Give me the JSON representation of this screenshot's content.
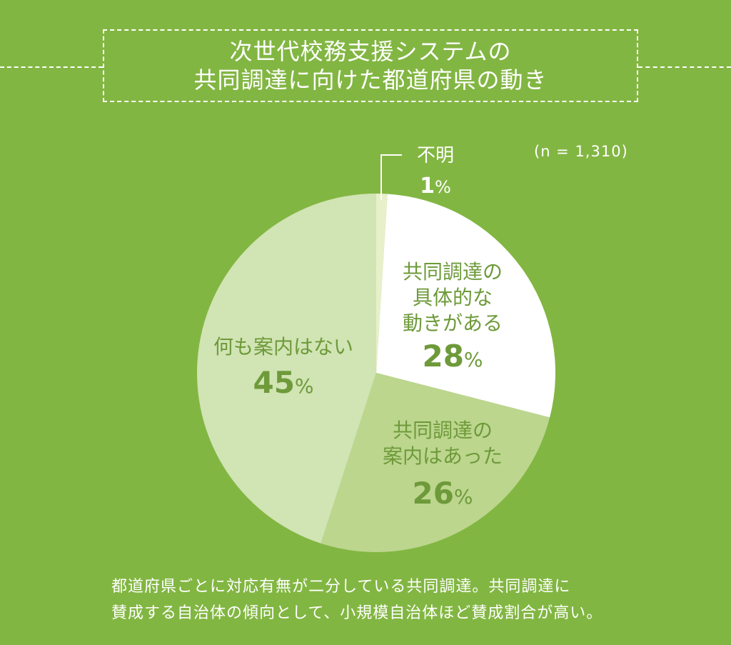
{
  "title": {
    "line1": "次世代校務支援システムの",
    "line2": "共同調達に向けた都道府県の動き"
  },
  "sample_note": "(n = 1,310)",
  "caption": {
    "line1": "都道府県ごとに対応有無が二分している共同調達。共同調達に",
    "line2": "賛成する自治体の傾向として、小規模自治体ほど賛成割合が高い。"
  },
  "colors": {
    "background": "#82b642",
    "accent_text": "#6e9a3a",
    "label_text": "#6e9a3a",
    "white": "#ffffff"
  },
  "chart_data": {
    "type": "pie",
    "title": "次世代校務支援システムの共同調達に向けた都道府県の動き",
    "start": "12 o'clock, clockwise",
    "slices": [
      {
        "label_lines": [
          "不明"
        ],
        "value": 1,
        "pct_text": "1",
        "color": "#e7f0c9",
        "label_color": "#ffffff"
      },
      {
        "label_lines": [
          "共同調達の",
          "具体的な",
          "動きがある"
        ],
        "value": 28,
        "pct_text": "28",
        "color": "#ffffff",
        "label_color": "#6e9a3a"
      },
      {
        "label_lines": [
          "共同調達の",
          "案内はあった"
        ],
        "value": 26,
        "pct_text": "26",
        "color": "#bcd68e",
        "label_color": "#6e9a3a"
      },
      {
        "label_lines": [
          "何も案内はない"
        ],
        "value": 45,
        "pct_text": "45",
        "color": "#d1e4b4",
        "label_color": "#6e9a3a"
      }
    ],
    "pct_suffix": "%"
  }
}
